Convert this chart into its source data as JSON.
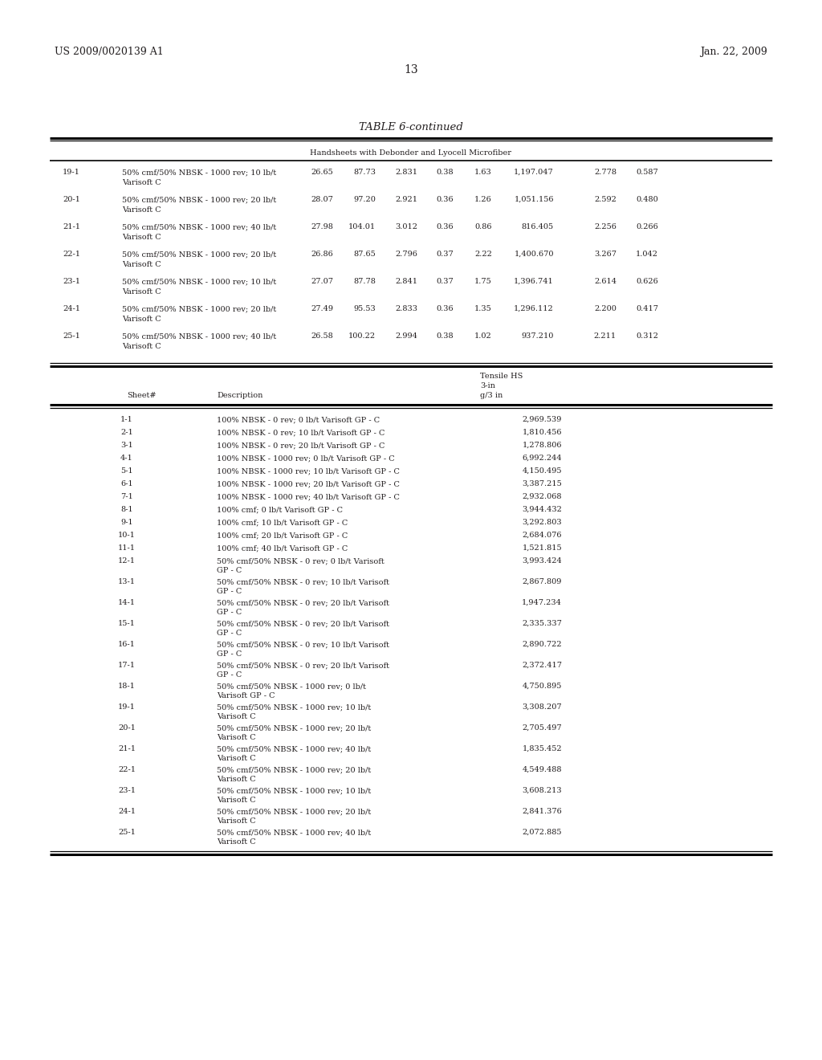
{
  "patent_left": "US 2009/0020139 A1",
  "patent_right": "Jan. 22, 2009",
  "page_number": "13",
  "table_title": "TABLE 6-continued",
  "table1_subtitle": "Handsheets with Debonder and Lyocell Microfiber",
  "table1_rows": [
    [
      "19-1",
      "50% cmf/50% NBSK - 1000 rev; 10 lb/t",
      "Varisoft C",
      "26.65",
      "87.73",
      "2.831",
      "0.38",
      "1.63",
      "1,197.047",
      "2.778",
      "0.587"
    ],
    [
      "20-1",
      "50% cmf/50% NBSK - 1000 rev; 20 lb/t",
      "Varisoft C",
      "28.07",
      "97.20",
      "2.921",
      "0.36",
      "1.26",
      "1,051.156",
      "2.592",
      "0.480"
    ],
    [
      "21-1",
      "50% cmf/50% NBSK - 1000 rev; 40 lb/t",
      "Varisoft C",
      "27.98",
      "104.01",
      "3.012",
      "0.36",
      "0.86",
      "816.405",
      "2.256",
      "0.266"
    ],
    [
      "22-1",
      "50% cmf/50% NBSK - 1000 rev; 20 lb/t",
      "Varisoft C",
      "26.86",
      "87.65",
      "2.796",
      "0.37",
      "2.22",
      "1,400.670",
      "3.267",
      "1.042"
    ],
    [
      "23-1",
      "50% cmf/50% NBSK - 1000 rev; 10 lb/t",
      "Varisoft C",
      "27.07",
      "87.78",
      "2.841",
      "0.37",
      "1.75",
      "1,396.741",
      "2.614",
      "0.626"
    ],
    [
      "24-1",
      "50% cmf/50% NBSK - 1000 rev; 20 lb/t",
      "Varisoft C",
      "27.49",
      "95.53",
      "2.833",
      "0.36",
      "1.35",
      "1,296.112",
      "2.200",
      "0.417"
    ],
    [
      "25-1",
      "50% cmf/50% NBSK - 1000 rev; 40 lb/t",
      "Varisoft C",
      "26.58",
      "100.22",
      "2.994",
      "0.38",
      "1.02",
      "937.210",
      "2.211",
      "0.312"
    ]
  ],
  "table2_rows": [
    [
      "1-1",
      "100% NBSK - 0 rev; 0 lb/t Varisoft GP - C",
      "",
      "2,969.539"
    ],
    [
      "2-1",
      "100% NBSK - 0 rev; 10 lb/t Varisoft GP - C",
      "",
      "1,810.456"
    ],
    [
      "3-1",
      "100% NBSK - 0 rev; 20 lb/t Varisoft GP - C",
      "",
      "1,278.806"
    ],
    [
      "4-1",
      "100% NBSK - 1000 rev; 0 lb/t Varisoft GP - C",
      "",
      "6,992.244"
    ],
    [
      "5-1",
      "100% NBSK - 1000 rev; 10 lb/t Varisoft GP - C",
      "",
      "4,150.495"
    ],
    [
      "6-1",
      "100% NBSK - 1000 rev; 20 lb/t Varisoft GP - C",
      "",
      "3,387.215"
    ],
    [
      "7-1",
      "100% NBSK - 1000 rev; 40 lb/t Varisoft GP - C",
      "",
      "2,932.068"
    ],
    [
      "8-1",
      "100% cmf; 0 lb/t Varisoft GP - C",
      "",
      "3,944.432"
    ],
    [
      "9-1",
      "100% cmf; 10 lb/t Varisoft GP - C",
      "",
      "3,292.803"
    ],
    [
      "10-1",
      "100% cmf; 20 lb/t Varisoft GP - C",
      "",
      "2,684.076"
    ],
    [
      "11-1",
      "100% cmf; 40 lb/t Varisoft GP - C",
      "",
      "1,521.815"
    ],
    [
      "12-1",
      "50% cmf/50% NBSK - 0 rev; 0 lb/t Varisoft",
      "GP - C",
      "3,993.424"
    ],
    [
      "13-1",
      "50% cmf/50% NBSK - 0 rev; 10 lb/t Varisoft",
      "GP - C",
      "2,867.809"
    ],
    [
      "14-1",
      "50% cmf/50% NBSK - 0 rev; 20 lb/t Varisoft",
      "GP - C",
      "1,947.234"
    ],
    [
      "15-1",
      "50% cmf/50% NBSK - 0 rev; 20 lb/t Varisoft",
      "GP - C",
      "2,335.337"
    ],
    [
      "16-1",
      "50% cmf/50% NBSK - 0 rev; 10 lb/t Varisoft",
      "GP - C",
      "2,890.722"
    ],
    [
      "17-1",
      "50% cmf/50% NBSK - 0 rev; 20 lb/t Varisoft",
      "GP - C",
      "2,372.417"
    ],
    [
      "18-1",
      "50% cmf/50% NBSK - 1000 rev; 0 lb/t",
      "Varisoft GP - C",
      "4,750.895"
    ],
    [
      "19-1",
      "50% cmf/50% NBSK - 1000 rev; 10 lb/t",
      "Varisoft C",
      "3,308.207"
    ],
    [
      "20-1",
      "50% cmf/50% NBSK - 1000 rev; 20 lb/t",
      "Varisoft C",
      "2,705.497"
    ],
    [
      "21-1",
      "50% cmf/50% NBSK - 1000 rev; 40 lb/t",
      "Varisoft C",
      "1,835.452"
    ],
    [
      "22-1",
      "50% cmf/50% NBSK - 1000 rev; 20 lb/t",
      "Varisoft C",
      "4,549.488"
    ],
    [
      "23-1",
      "50% cmf/50% NBSK - 1000 rev; 10 lb/t",
      "Varisoft C",
      "3,608.213"
    ],
    [
      "24-1",
      "50% cmf/50% NBSK - 1000 rev; 20 lb/t",
      "Varisoft C",
      "2,841.376"
    ],
    [
      "25-1",
      "50% cmf/50% NBSK - 1000 rev; 40 lb/t",
      "Varisoft C",
      "2,072.885"
    ]
  ],
  "bg_color": "#ffffff",
  "text_color": "#231f20",
  "font_size": 7.0,
  "small_font_size": 6.8
}
